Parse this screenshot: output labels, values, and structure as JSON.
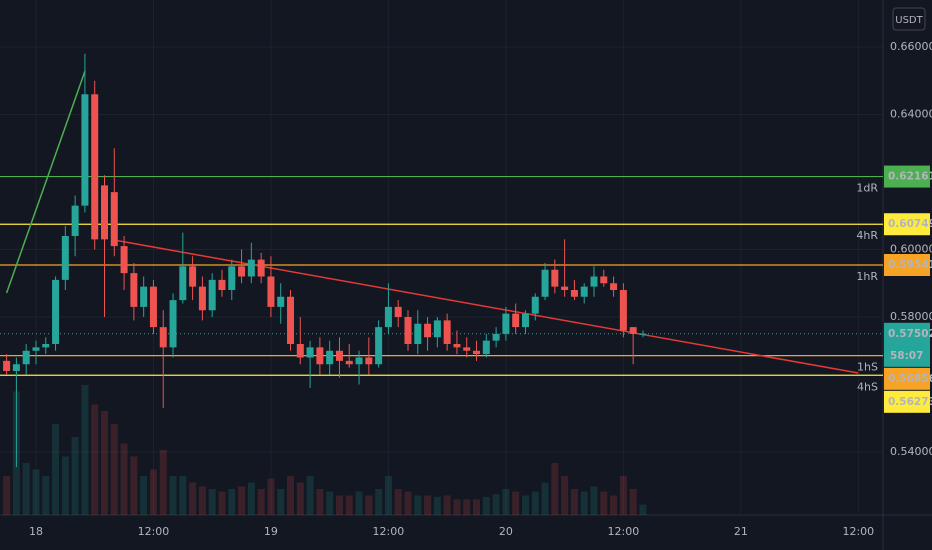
{
  "chart_data": {
    "type": "candlestick",
    "currency": "USDT",
    "countdown": "58:07",
    "categories": [
      null,
      null,
      null,
      "18",
      null,
      null,
      null,
      null,
      null,
      null,
      null,
      null,
      null,
      null,
      null,
      "12:00",
      null,
      null,
      null,
      null,
      null,
      null,
      null,
      null,
      null,
      null,
      null,
      "19",
      null,
      null,
      null,
      null,
      null,
      null,
      null,
      null,
      null,
      null,
      null,
      "12:00",
      null,
      null,
      null,
      null,
      null,
      null,
      null,
      null,
      null,
      null,
      null,
      "20",
      null,
      null,
      null,
      null,
      null,
      null,
      null,
      null,
      null,
      null,
      null,
      "12:00",
      null,
      null,
      null,
      null,
      null,
      null,
      null,
      null,
      null,
      null,
      null,
      "21",
      null,
      null,
      null,
      null,
      null,
      null,
      null,
      null,
      null,
      null,
      null,
      "12:00",
      null,
      null
    ],
    "open": [
      0.567,
      0.564,
      0.566,
      0.57,
      0.571,
      0.572,
      0.591,
      0.604,
      0.613,
      0.646,
      0.619,
      0.617,
      0.601,
      0.593,
      0.583,
      0.589,
      0.577,
      0.571,
      0.585,
      0.595,
      0.589,
      0.582,
      0.591,
      0.588,
      0.595,
      0.592,
      0.597,
      0.592,
      0.583,
      0.586,
      0.572,
      0.568,
      0.571,
      0.566,
      0.57,
      0.567,
      0.566,
      0.568,
      0.566,
      0.577,
      0.583,
      0.58,
      0.572,
      0.578,
      0.574,
      0.579,
      0.572,
      0.571,
      0.57,
      0.569,
      0.573,
      0.575,
      0.581,
      0.577,
      0.581,
      0.586,
      0.594,
      0.589,
      0.588,
      0.586,
      0.589,
      0.592,
      0.59,
      0.588,
      0.577,
      0.575,
      null,
      null,
      null,
      null,
      null,
      null,
      null,
      null,
      null,
      null,
      null,
      null,
      null,
      null,
      null,
      null,
      null,
      null,
      null,
      null,
      null,
      null,
      null,
      null
    ],
    "high": [
      0.569,
      0.568,
      0.572,
      0.573,
      0.574,
      0.592,
      0.607,
      0.616,
      0.658,
      0.65,
      0.622,
      0.63,
      0.604,
      0.596,
      0.592,
      0.591,
      0.582,
      0.587,
      0.605,
      0.598,
      0.592,
      0.593,
      0.594,
      0.597,
      0.6,
      0.602,
      0.599,
      0.598,
      0.59,
      0.588,
      0.58,
      0.573,
      0.574,
      0.573,
      0.574,
      0.572,
      0.57,
      0.574,
      0.579,
      0.59,
      0.585,
      0.582,
      0.582,
      0.58,
      0.58,
      0.581,
      0.576,
      0.574,
      0.573,
      0.575,
      0.577,
      0.583,
      0.584,
      0.582,
      0.587,
      0.596,
      0.597,
      0.603,
      0.591,
      0.59,
      0.595,
      0.594,
      0.592,
      0.59,
      0.577,
      0.576,
      null,
      null,
      null,
      null,
      null,
      null,
      null,
      null,
      null,
      null,
      null,
      null,
      null,
      null,
      null,
      null,
      null,
      null,
      null,
      null,
      null,
      null,
      null,
      null
    ],
    "low": [
      0.563,
      0.5355,
      0.563,
      0.566,
      0.569,
      0.57,
      0.588,
      0.598,
      0.611,
      0.6,
      0.58,
      0.598,
      0.588,
      0.579,
      0.58,
      0.575,
      0.553,
      0.568,
      0.584,
      0.585,
      0.579,
      0.58,
      0.586,
      0.585,
      0.59,
      0.59,
      0.59,
      0.58,
      0.578,
      0.57,
      0.566,
      0.559,
      0.563,
      0.563,
      0.562,
      0.565,
      0.56,
      0.563,
      0.565,
      0.575,
      0.577,
      0.57,
      0.569,
      0.57,
      0.571,
      0.57,
      0.569,
      0.568,
      0.567,
      0.568,
      0.571,
      0.573,
      0.575,
      0.575,
      0.579,
      0.585,
      0.587,
      0.586,
      0.585,
      0.584,
      0.586,
      0.589,
      0.586,
      0.574,
      0.566,
      0.574,
      null,
      null,
      null,
      null,
      null,
      null,
      null,
      null,
      null,
      null,
      null,
      null,
      null,
      null,
      null,
      null,
      null,
      null,
      null,
      null,
      null,
      null,
      null,
      null
    ],
    "close": [
      0.564,
      0.566,
      0.57,
      0.571,
      0.572,
      0.591,
      0.604,
      0.613,
      0.646,
      0.603,
      0.603,
      0.601,
      0.593,
      0.583,
      0.589,
      0.577,
      0.571,
      0.585,
      0.595,
      0.589,
      0.582,
      0.591,
      0.588,
      0.595,
      0.592,
      0.597,
      0.592,
      0.583,
      0.586,
      0.572,
      0.568,
      0.571,
      0.566,
      0.57,
      0.567,
      0.566,
      0.568,
      0.566,
      0.577,
      0.583,
      0.58,
      0.572,
      0.578,
      0.574,
      0.579,
      0.572,
      0.571,
      0.57,
      0.569,
      0.573,
      0.575,
      0.581,
      0.577,
      0.581,
      0.586,
      0.594,
      0.589,
      0.588,
      0.586,
      0.589,
      0.592,
      0.59,
      0.588,
      0.576,
      0.575,
      0.57502,
      null,
      null,
      null,
      null,
      null,
      null,
      null,
      null,
      null,
      null,
      null,
      null,
      null,
      null,
      null,
      null,
      null,
      null,
      null,
      null,
      null,
      null,
      null,
      null
    ],
    "volume": [
      30,
      95,
      40,
      35,
      30,
      70,
      45,
      60,
      100,
      85,
      80,
      70,
      55,
      45,
      30,
      35,
      50,
      30,
      30,
      25,
      22,
      20,
      18,
      20,
      22,
      25,
      20,
      28,
      20,
      30,
      25,
      30,
      20,
      18,
      15,
      15,
      18,
      15,
      20,
      30,
      20,
      18,
      15,
      15,
      14,
      15,
      12,
      12,
      12,
      14,
      16,
      20,
      18,
      15,
      18,
      25,
      40,
      30,
      20,
      18,
      22,
      18,
      15,
      30,
      20,
      8,
      null,
      null,
      null,
      null,
      null,
      null,
      null,
      null,
      null,
      null,
      null,
      null,
      null,
      null,
      null,
      null,
      null,
      null,
      null,
      null,
      null,
      null,
      null,
      null
    ],
    "up_color": "#26a69a",
    "down_color": "#ef5350",
    "ylim": [
      0.52133,
      0.67393
    ],
    "yticks": [
      {
        "value": 0.54,
        "label": "0.54000"
      },
      {
        "value": 0.58,
        "label": "0.58000"
      },
      {
        "value": 0.6,
        "label": "0.60000"
      },
      {
        "value": 0.64,
        "label": "0.64000"
      },
      {
        "value": 0.66,
        "label": "0.66000"
      }
    ],
    "grid": true,
    "levels": [
      {
        "name": "1dR",
        "value": 0.62161,
        "color": "#4caf50"
      },
      {
        "name": "4hR",
        "value": 0.60749,
        "color": "#ffeb3b"
      },
      {
        "name": "1hR",
        "value": 0.59541,
        "color": "#f7a325"
      },
      {
        "name": "1hS",
        "value": 0.56856,
        "color": "#f7a325"
      },
      {
        "name": "4hS",
        "value": 0.56273,
        "color": "#ffeb3b"
      }
    ],
    "trend_lines": [
      {
        "color": "#4caf50",
        "x": [
          0,
          8
        ],
        "y": [
          0.5871,
          0.6528
        ]
      },
      {
        "color": "#e53935",
        "x": [
          11,
          87
        ],
        "y": [
          0.6028,
          0.5634
        ]
      }
    ]
  }
}
